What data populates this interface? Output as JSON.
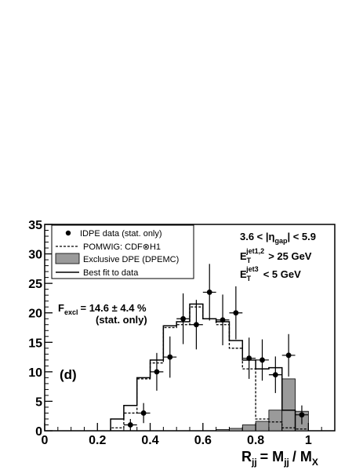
{
  "chart_data": {
    "type": "histogram",
    "xlim": [
      0,
      1.1
    ],
    "ylim": [
      0,
      35
    ],
    "x_ticks": [
      "0",
      "0.2",
      "0.4",
      "0.6",
      "0.8",
      "1"
    ],
    "y_ticks": [
      "0",
      "5",
      "10",
      "15",
      "20",
      "25",
      "30",
      "35"
    ],
    "xlabel": "R_jj = M_jj / M_X",
    "bin_edges": [
      0.25,
      0.3,
      0.35,
      0.4,
      0.45,
      0.5,
      0.55,
      0.6,
      0.65,
      0.7,
      0.75,
      0.8,
      0.85,
      0.9,
      0.95,
      1.0
    ],
    "series": [
      {
        "name": "IDPE data (stat. only)",
        "kind": "points",
        "x": [
          0.325,
          0.375,
          0.425,
          0.475,
          0.525,
          0.575,
          0.625,
          0.675,
          0.725,
          0.775,
          0.825,
          0.875,
          0.925,
          0.975
        ],
        "y": [
          1.0,
          3.0,
          10.0,
          12.5,
          19.0,
          18.0,
          23.5,
          18.8,
          20.0,
          12.3,
          12.0,
          9.5,
          12.8,
          2.7
        ],
        "yerr": [
          1.0,
          1.7,
          3.2,
          3.5,
          4.3,
          4.2,
          4.8,
          4.3,
          4.5,
          3.5,
          3.5,
          3.1,
          3.6,
          1.6
        ]
      },
      {
        "name": "POMWIG: CDF⊗H1",
        "kind": "dashed-step",
        "values": [
          0.5,
          3.0,
          8.8,
          11.5,
          17.5,
          18.0,
          21.0,
          19.0,
          18.0,
          14.0,
          10.5,
          2.0,
          1.5,
          0.5,
          0.3
        ]
      },
      {
        "name": "Exclusive DPE (DPEMC)",
        "kind": "filled-step",
        "values": [
          0,
          0,
          0,
          0,
          0,
          0,
          0,
          0,
          0.2,
          0.4,
          1.0,
          1.6,
          3.5,
          8.8,
          3.3
        ]
      },
      {
        "name": "Best fit to data",
        "kind": "solid-step",
        "values": [
          2.0,
          4.3,
          9.0,
          12.0,
          17.8,
          18.5,
          21.5,
          19.0,
          18.5,
          15.3,
          12.0,
          10.5,
          10.7,
          3.5
        ]
      }
    ]
  },
  "legend": {
    "entries": [
      "IDPE data (stat. only)",
      "POMWIG: CDF⊗H1",
      "Exclusive DPE (DPEMC)",
      "Best fit to data"
    ]
  },
  "annotations": {
    "gap_cut_lhs": "3.6 < |η",
    "gap_cut_sub": "gap",
    "gap_cut_rhs": "| < 5.9",
    "et12_base": "E",
    "et12_sub": "T",
    "et12_sup": "jet1,2",
    "et12_rhs": "> 25 GeV",
    "et3_base": "E",
    "et3_sub": "T",
    "et3_sup": "jet3",
    "et3_rhs": "< 5 GeV",
    "fexcl_base": "F",
    "fexcl_sub": "excl",
    "fexcl_rhs": "= 14.6 ± 4.4 %",
    "fexcl_note": "(stat. only)",
    "panel_label": "(d)"
  },
  "axis_title": {
    "r_base": "R",
    "r_sub": "jj",
    "eq": "= M",
    "m_sub": "jj",
    "slash": "/ M",
    "mx_sub": "X"
  }
}
